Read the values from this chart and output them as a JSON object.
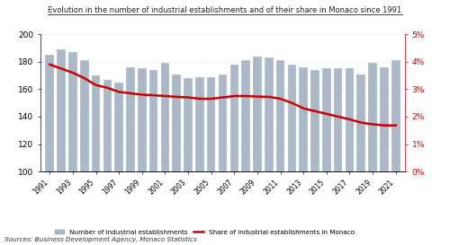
{
  "years": [
    1991,
    1992,
    1993,
    1994,
    1995,
    1996,
    1997,
    1998,
    1999,
    2000,
    2001,
    2002,
    2003,
    2004,
    2005,
    2006,
    2007,
    2008,
    2009,
    2010,
    2011,
    2012,
    2013,
    2014,
    2015,
    2016,
    2017,
    2018,
    2019,
    2020,
    2021
  ],
  "establishments": [
    185,
    189,
    187,
    181,
    170,
    167,
    165,
    176,
    175,
    174,
    179,
    171,
    168,
    169,
    169,
    171,
    178,
    181,
    184,
    183,
    181,
    178,
    176,
    174,
    175,
    175,
    175,
    171,
    179,
    176,
    181
  ],
  "share_pct": [
    3.9,
    3.75,
    3.6,
    3.4,
    3.15,
    3.05,
    2.9,
    2.85,
    2.8,
    2.78,
    2.75,
    2.72,
    2.7,
    2.65,
    2.65,
    2.7,
    2.75,
    2.75,
    2.73,
    2.72,
    2.65,
    2.5,
    2.3,
    2.2,
    2.1,
    2.0,
    1.9,
    1.78,
    1.72,
    1.68,
    1.68
  ],
  "bar_color": "#aab8c8",
  "line_color": "#cc0000",
  "title": "Evolution in the number of industrial establishments and of their share in Monaco since 1991",
  "ylim_left": [
    100,
    200
  ],
  "ylim_right": [
    0,
    5
  ],
  "yticks_left": [
    100,
    120,
    140,
    160,
    180,
    200
  ],
  "yticks_right": [
    0,
    1,
    2,
    3,
    4,
    5
  ],
  "ytick_labels_right": [
    "0%",
    "1%",
    "2%",
    "3%",
    "4%",
    "5%"
  ],
  "xtick_years": [
    1991,
    1993,
    1995,
    1997,
    1999,
    2001,
    2003,
    2005,
    2007,
    2009,
    2011,
    2013,
    2015,
    2017,
    2019,
    2021
  ],
  "legend_bar": "Number of industrial establishments",
  "legend_line": "Share of industrial establishments in Monaco",
  "source_text": "Sources: Business Development Agency, Monaco Statistics",
  "background_color": "#ffffff",
  "grid_color": "#cccccc"
}
